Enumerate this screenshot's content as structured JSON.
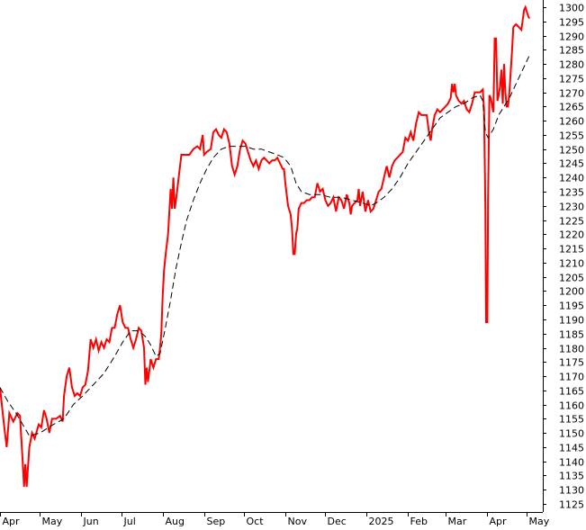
{
  "chart_data": {
    "type": "line",
    "title": "",
    "xlabel": "",
    "ylabel": "",
    "ylim": [
      1122,
      1302
    ],
    "y_ticks": [
      1125,
      1130,
      1135,
      1140,
      1145,
      1150,
      1155,
      1160,
      1165,
      1170,
      1175,
      1180,
      1185,
      1190,
      1195,
      1200,
      1205,
      1210,
      1215,
      1220,
      1225,
      1230,
      1235,
      1240,
      1245,
      1250,
      1255,
      1260,
      1265,
      1270,
      1275,
      1280,
      1285,
      1290,
      1295,
      1300
    ],
    "x_ticks": [
      {
        "label": "Apr",
        "day": 0
      },
      {
        "label": "May",
        "day": 30
      },
      {
        "label": "Jun",
        "day": 61
      },
      {
        "label": "Jul",
        "day": 91
      },
      {
        "label": "Aug",
        "day": 122
      },
      {
        "label": "Sep",
        "day": 153
      },
      {
        "label": "Oct",
        "day": 183
      },
      {
        "label": "Nov",
        "day": 214
      },
      {
        "label": "Dec",
        "day": 244
      },
      {
        "label": "2025",
        "day": 275
      },
      {
        "label": "Feb",
        "day": 306
      },
      {
        "label": "Mar",
        "day": 334
      },
      {
        "label": "Apr",
        "day": 365
      },
      {
        "label": "May",
        "day": 395
      }
    ],
    "x_range": [
      0,
      403
    ],
    "series": [
      {
        "color": "#ff0000",
        "style": "solid",
        "points": [
          [
            0,
            1166
          ],
          [
            3,
            1153
          ],
          [
            5,
            1145
          ],
          [
            7,
            1157
          ],
          [
            10,
            1154
          ],
          [
            13,
            1157
          ],
          [
            15,
            1156
          ],
          [
            17,
            1140
          ],
          [
            18,
            1131
          ],
          [
            19,
            1139
          ],
          [
            20,
            1131
          ],
          [
            22,
            1145
          ],
          [
            24,
            1150
          ],
          [
            26,
            1148
          ],
          [
            29,
            1153
          ],
          [
            31,
            1152
          ],
          [
            33,
            1158
          ],
          [
            35,
            1155
          ],
          [
            37,
            1150
          ],
          [
            39,
            1155
          ],
          [
            42,
            1155
          ],
          [
            45,
            1156
          ],
          [
            47,
            1154
          ],
          [
            48,
            1163
          ],
          [
            50,
            1170
          ],
          [
            52,
            1173
          ],
          [
            54,
            1166
          ],
          [
            56,
            1163
          ],
          [
            58,
            1164
          ],
          [
            60,
            1163
          ],
          [
            62,
            1166
          ],
          [
            64,
            1167
          ],
          [
            66,
            1172
          ],
          [
            68,
            1183
          ],
          [
            70,
            1180
          ],
          [
            72,
            1183
          ],
          [
            74,
            1179
          ],
          [
            76,
            1182
          ],
          [
            78,
            1180
          ],
          [
            80,
            1183
          ],
          [
            82,
            1182
          ],
          [
            84,
            1187
          ],
          [
            86,
            1187
          ],
          [
            88,
            1192
          ],
          [
            90,
            1195
          ],
          [
            92,
            1189
          ],
          [
            94,
            1187
          ],
          [
            96,
            1187
          ],
          [
            98,
            1183
          ],
          [
            100,
            1180
          ],
          [
            102,
            1183
          ],
          [
            104,
            1187
          ],
          [
            106,
            1186
          ],
          [
            108,
            1180
          ],
          [
            109,
            1167
          ],
          [
            110,
            1173
          ],
          [
            111,
            1168
          ],
          [
            113,
            1176
          ],
          [
            115,
            1173
          ],
          [
            117,
            1176
          ],
          [
            119,
            1176
          ],
          [
            120,
            1180
          ],
          [
            121,
            1185
          ],
          [
            122,
            1198
          ],
          [
            123,
            1207
          ],
          [
            124,
            1212
          ],
          [
            126,
            1220
          ],
          [
            128,
            1236
          ],
          [
            129,
            1229
          ],
          [
            130,
            1240
          ],
          [
            131,
            1229
          ],
          [
            132,
            1232
          ],
          [
            133,
            1236
          ],
          [
            134,
            1240
          ],
          [
            135,
            1244
          ],
          [
            136,
            1248
          ],
          [
            139,
            1248
          ],
          [
            142,
            1248
          ],
          [
            145,
            1250
          ],
          [
            148,
            1251
          ],
          [
            150,
            1250
          ],
          [
            152,
            1255
          ],
          [
            153,
            1248
          ],
          [
            155,
            1249
          ],
          [
            158,
            1250
          ],
          [
            160,
            1256
          ],
          [
            162,
            1257
          ],
          [
            164,
            1255
          ],
          [
            166,
            1254
          ],
          [
            168,
            1257
          ],
          [
            170,
            1256
          ],
          [
            172,
            1252
          ],
          [
            174,
            1244
          ],
          [
            176,
            1241
          ],
          [
            178,
            1244
          ],
          [
            180,
            1250
          ],
          [
            182,
            1253
          ],
          [
            184,
            1252
          ],
          [
            186,
            1249
          ],
          [
            188,
            1246
          ],
          [
            190,
            1244
          ],
          [
            192,
            1246
          ],
          [
            194,
            1243
          ],
          [
            196,
            1246
          ],
          [
            198,
            1247
          ],
          [
            200,
            1246
          ],
          [
            202,
            1245
          ],
          [
            204,
            1246
          ],
          [
            206,
            1246
          ],
          [
            208,
            1247
          ],
          [
            210,
            1245
          ],
          [
            212,
            1243
          ],
          [
            213,
            1243
          ],
          [
            214,
            1238
          ],
          [
            216,
            1230
          ],
          [
            218,
            1227
          ],
          [
            219,
            1222
          ],
          [
            220,
            1213
          ],
          [
            221,
            1213
          ],
          [
            222,
            1220
          ],
          [
            223,
            1222
          ],
          [
            224,
            1229
          ],
          [
            226,
            1231
          ],
          [
            228,
            1231
          ],
          [
            230,
            1232
          ],
          [
            232,
            1232
          ],
          [
            234,
            1233
          ],
          [
            236,
            1233
          ],
          [
            238,
            1238
          ],
          [
            240,
            1235
          ],
          [
            242,
            1236
          ],
          [
            244,
            1232
          ],
          [
            246,
            1230
          ],
          [
            248,
            1231
          ],
          [
            250,
            1233
          ],
          [
            252,
            1228
          ],
          [
            254,
            1233
          ],
          [
            256,
            1232
          ],
          [
            258,
            1229
          ],
          [
            260,
            1234
          ],
          [
            262,
            1231
          ],
          [
            263,
            1227
          ],
          [
            264,
            1230
          ],
          [
            266,
            1231
          ],
          [
            268,
            1232
          ],
          [
            269,
            1236
          ],
          [
            270,
            1230
          ],
          [
            272,
            1235
          ],
          [
            274,
            1228
          ],
          [
            276,
            1232
          ],
          [
            278,
            1228
          ],
          [
            280,
            1229
          ],
          [
            282,
            1232
          ],
          [
            284,
            1235
          ],
          [
            286,
            1236
          ],
          [
            288,
            1240
          ],
          [
            290,
            1244
          ],
          [
            292,
            1240
          ],
          [
            294,
            1244
          ],
          [
            296,
            1246
          ],
          [
            298,
            1247
          ],
          [
            300,
            1248
          ],
          [
            302,
            1249
          ],
          [
            304,
            1254
          ],
          [
            306,
            1253
          ],
          [
            308,
            1256
          ],
          [
            310,
            1253
          ],
          [
            312,
            1259
          ],
          [
            314,
            1263
          ],
          [
            316,
            1262
          ],
          [
            318,
            1262
          ],
          [
            320,
            1262
          ],
          [
            322,
            1255
          ],
          [
            323,
            1253
          ],
          [
            324,
            1257
          ],
          [
            326,
            1262
          ],
          [
            328,
            1264
          ],
          [
            330,
            1263
          ],
          [
            332,
            1264
          ],
          [
            334,
            1265
          ],
          [
            336,
            1266
          ],
          [
            338,
            1268
          ],
          [
            339,
            1273
          ],
          [
            340,
            1270
          ],
          [
            341,
            1273
          ],
          [
            342,
            1269
          ],
          [
            344,
            1267
          ],
          [
            346,
            1266
          ],
          [
            348,
            1267
          ],
          [
            350,
            1264
          ],
          [
            352,
            1263
          ],
          [
            354,
            1266
          ],
          [
            356,
            1270
          ],
          [
            358,
            1270
          ],
          [
            360,
            1270
          ],
          [
            362,
            1271
          ],
          [
            363,
            1264
          ],
          [
            364,
            1230
          ],
          [
            364.5,
            1189
          ],
          [
            365.5,
            1189
          ],
          [
            366,
            1232
          ],
          [
            367,
            1269
          ],
          [
            368,
            1268
          ],
          [
            370,
            1263
          ],
          [
            371,
            1289
          ],
          [
            372,
            1289
          ],
          [
            373,
            1267
          ],
          [
            374,
            1269
          ],
          [
            375,
            1272
          ],
          [
            376,
            1278
          ],
          [
            377,
            1266
          ],
          [
            378,
            1280
          ],
          [
            379,
            1270
          ],
          [
            380,
            1265
          ],
          [
            381,
            1265
          ],
          [
            382,
            1270
          ],
          [
            384,
            1285
          ],
          [
            385,
            1293
          ],
          [
            387,
            1294
          ],
          [
            389,
            1293
          ],
          [
            391,
            1292
          ],
          [
            393,
            1299
          ],
          [
            394,
            1300
          ],
          [
            396,
            1297
          ],
          [
            397,
            1296
          ]
        ]
      },
      {
        "color": "#000000",
        "style": "dashed",
        "points": [
          [
            0,
            1166
          ],
          [
            6,
            1161
          ],
          [
            12,
            1157
          ],
          [
            17,
            1153
          ],
          [
            22,
            1149
          ],
          [
            30,
            1150
          ],
          [
            40,
            1153
          ],
          [
            48,
            1155
          ],
          [
            55,
            1160
          ],
          [
            62,
            1163
          ],
          [
            70,
            1167
          ],
          [
            78,
            1171
          ],
          [
            86,
            1177
          ],
          [
            92,
            1182
          ],
          [
            98,
            1186
          ],
          [
            104,
            1186
          ],
          [
            109,
            1184
          ],
          [
            113,
            1181
          ],
          [
            117,
            1177
          ],
          [
            120,
            1178
          ],
          [
            124,
            1187
          ],
          [
            128,
            1197
          ],
          [
            132,
            1208
          ],
          [
            136,
            1217
          ],
          [
            140,
            1225
          ],
          [
            145,
            1232
          ],
          [
            150,
            1238
          ],
          [
            155,
            1243
          ],
          [
            160,
            1247
          ],
          [
            166,
            1250
          ],
          [
            172,
            1251
          ],
          [
            178,
            1251
          ],
          [
            184,
            1251
          ],
          [
            190,
            1250
          ],
          [
            196,
            1250
          ],
          [
            202,
            1249
          ],
          [
            208,
            1248
          ],
          [
            213,
            1247
          ],
          [
            218,
            1244
          ],
          [
            222,
            1238
          ],
          [
            226,
            1235
          ],
          [
            232,
            1234
          ],
          [
            240,
            1234
          ],
          [
            248,
            1233
          ],
          [
            256,
            1233
          ],
          [
            264,
            1232
          ],
          [
            272,
            1231
          ],
          [
            278,
            1230
          ],
          [
            282,
            1231
          ],
          [
            288,
            1233
          ],
          [
            294,
            1236
          ],
          [
            300,
            1240
          ],
          [
            306,
            1245
          ],
          [
            312,
            1249
          ],
          [
            318,
            1253
          ],
          [
            324,
            1257
          ],
          [
            330,
            1261
          ],
          [
            336,
            1263
          ],
          [
            342,
            1265
          ],
          [
            348,
            1266
          ],
          [
            354,
            1268
          ],
          [
            360,
            1269
          ],
          [
            362,
            1267
          ],
          [
            363,
            1262
          ],
          [
            364,
            1256
          ],
          [
            366,
            1254
          ],
          [
            370,
            1257
          ],
          [
            374,
            1262
          ],
          [
            378,
            1265
          ],
          [
            382,
            1268
          ],
          [
            386,
            1272
          ],
          [
            390,
            1276
          ],
          [
            394,
            1280
          ],
          [
            397,
            1283
          ]
        ]
      }
    ]
  }
}
